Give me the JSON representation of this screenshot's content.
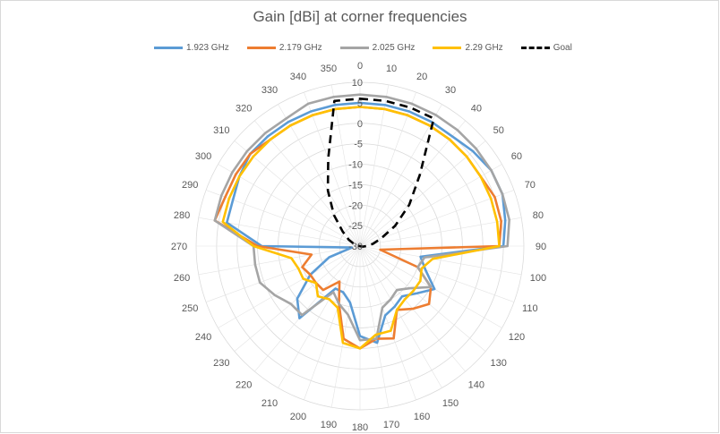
{
  "chart_data": {
    "type": "radar",
    "title": "Gain [dBi] at corner frequencies",
    "angles": [
      0,
      10,
      20,
      30,
      40,
      50,
      60,
      70,
      80,
      90,
      100,
      110,
      120,
      130,
      140,
      150,
      160,
      170,
      180,
      190,
      200,
      210,
      220,
      230,
      240,
      250,
      260,
      270,
      280,
      290,
      300,
      310,
      320,
      330,
      340,
      350
    ],
    "radial_ticks": [
      10,
      5,
      0,
      -5,
      -10,
      -15,
      -20,
      -25,
      -30
    ],
    "rlim": [
      -30,
      10
    ],
    "legend_position": "top",
    "grid": true,
    "series": [
      {
        "name": "1.923 GHz",
        "color": "#5B9BD5",
        "dash": false,
        "values": [
          5,
          5,
          5,
          5,
          5,
          6,
          7,
          7,
          6,
          5,
          -15,
          -13,
          -9,
          -12,
          -14,
          -13,
          -12,
          -6,
          -8,
          -16,
          -18,
          -18,
          -7,
          -10,
          -16,
          -22,
          -28,
          -6,
          3,
          3,
          4,
          5,
          5,
          5,
          5,
          5
        ]
      },
      {
        "name": "2.179 GHz",
        "color": "#ED7D31",
        "dash": false,
        "values": [
          4,
          4,
          4,
          4,
          4,
          4,
          4,
          5,
          5,
          4,
          -25,
          -15,
          -10,
          -8,
          -10,
          -12,
          -6,
          -7,
          -5,
          -7,
          -15,
          -20,
          -16,
          -16,
          -16,
          -15,
          -18,
          -5,
          6,
          5,
          5,
          5,
          4,
          4,
          4,
          4
        ]
      },
      {
        "name": "2.025 GHz",
        "color": "#A5A5A5",
        "dash": false,
        "values": [
          7,
          7,
          7,
          7,
          7,
          7,
          7,
          7,
          7,
          6,
          -14,
          -15,
          -10,
          -14,
          -16,
          -15,
          -14,
          -7,
          -7,
          -13,
          -15,
          -17,
          -8,
          -8,
          -6,
          -4,
          -4,
          -4,
          6,
          6,
          6,
          6,
          6,
          6,
          7,
          7
        ]
      },
      {
        "name": "2.29 GHz",
        "color": "#FFC000",
        "dash": false,
        "values": [
          4,
          4,
          4,
          4,
          4,
          4,
          4,
          4,
          4,
          4,
          -12,
          -14,
          -13,
          -13,
          -13,
          -12,
          -8,
          -8,
          -5,
          -6,
          -14,
          -15,
          -14,
          -16,
          -14,
          -14,
          -13,
          -4,
          4,
          4,
          4,
          4,
          4,
          4,
          4,
          4
        ]
      },
      {
        "name": "Goal",
        "color": "#000000",
        "dash": true,
        "values": [
          6,
          6,
          6,
          6,
          -7.3,
          -14.3,
          -20.1,
          -24.5,
          -26.8,
          -28.4,
          -29.3,
          -29.9,
          -30,
          -30,
          -30,
          -30,
          -30,
          -30,
          -30,
          -30,
          -30,
          -30,
          -30,
          -30,
          -30,
          -30,
          -30,
          -29.9,
          -29.3,
          -28.4,
          -26.8,
          -24.5,
          -20.1,
          -14.3,
          -7.3,
          6
        ]
      }
    ]
  }
}
